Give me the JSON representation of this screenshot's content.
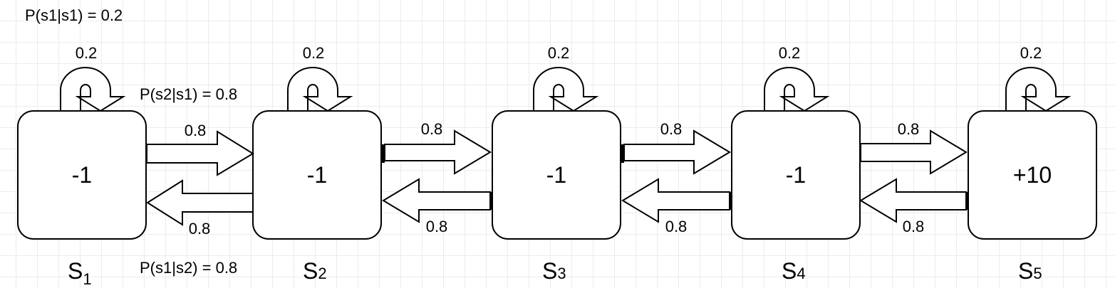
{
  "annotations": {
    "self_loop_s1": "P(s1|s1) = 0.2",
    "forward_s1_s2": "P(s2|s1) = 0.8",
    "backward_s2_s1": "P(s1|s2) = 0.8"
  },
  "states": [
    {
      "name": "S",
      "subscript": "1",
      "reward": "-1",
      "self_prob": "0.2"
    },
    {
      "name": "S",
      "subscript": "2",
      "reward": "-1",
      "self_prob": "0.2"
    },
    {
      "name": "S",
      "subscript": "3",
      "reward": "-1",
      "self_prob": "0.2"
    },
    {
      "name": "S",
      "subscript": "4",
      "reward": "-1",
      "self_prob": "0.2"
    },
    {
      "name": "S",
      "subscript": "5",
      "reward": "+10",
      "self_prob": "0.2"
    }
  ],
  "transitions": {
    "forward_probs": [
      "0.8",
      "0.8",
      "0.8",
      "0.8"
    ],
    "backward_probs": [
      "0.8",
      "0.8",
      "0.8",
      "0.8"
    ]
  }
}
